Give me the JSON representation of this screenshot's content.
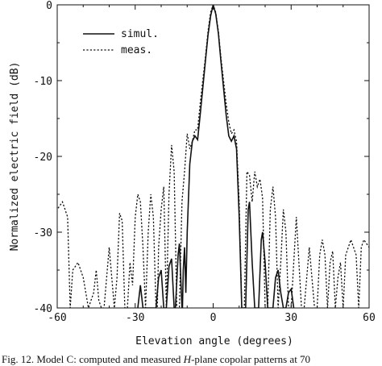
{
  "chart_data": {
    "type": "line",
    "title": "",
    "xlabel": "Elevation angle (degrees)",
    "ylabel": "Normalized electric field (dB)",
    "xlim": [
      -60,
      60
    ],
    "ylim": [
      -40,
      0
    ],
    "xticks": [
      "-60",
      "-30",
      "0",
      "30",
      "60"
    ],
    "yticks": [
      "0",
      "-10",
      "-20",
      "-30",
      "-40"
    ],
    "grid": false,
    "legend_position": "top-left",
    "series": [
      {
        "name": "simul.",
        "style": "solid",
        "points": [
          [
            -29,
            -40
          ],
          [
            -28,
            -37
          ],
          [
            -27,
            -40
          ],
          [
            -22,
            -40
          ],
          [
            -21,
            -36
          ],
          [
            -20,
            -35
          ],
          [
            -19,
            -40
          ],
          [
            -18,
            -40
          ],
          [
            -17,
            -34.5
          ],
          [
            -16,
            -33.5
          ],
          [
            -15,
            -40
          ],
          [
            -14.5,
            -40
          ],
          [
            -13.5,
            -33
          ],
          [
            -13,
            -31.5
          ],
          [
            -12,
            -40
          ],
          [
            -11.8,
            -40
          ],
          [
            -11.5,
            -35
          ],
          [
            -11,
            -32
          ],
          [
            -10.5,
            -38
          ],
          [
            -10,
            -30
          ],
          [
            -9,
            -21
          ],
          [
            -8,
            -18
          ],
          [
            -7,
            -17.3
          ],
          [
            -6,
            -17.8
          ],
          [
            -5,
            -14.5
          ],
          [
            -4,
            -11
          ],
          [
            -3,
            -7.5
          ],
          [
            -2,
            -4
          ],
          [
            -1,
            -1.5
          ],
          [
            0,
            0
          ],
          [
            1,
            -1.2
          ],
          [
            2,
            -3.8
          ],
          [
            3,
            -7.5
          ],
          [
            4,
            -11
          ],
          [
            5,
            -14.5
          ],
          [
            6,
            -17.3
          ],
          [
            7,
            -18
          ],
          [
            8,
            -17.3
          ],
          [
            9,
            -19
          ],
          [
            10,
            -28
          ],
          [
            11,
            -40
          ],
          [
            12.5,
            -40
          ],
          [
            13.5,
            -27
          ],
          [
            14,
            -26
          ],
          [
            15,
            -34
          ],
          [
            16,
            -40
          ],
          [
            17.5,
            -40
          ],
          [
            18.5,
            -31
          ],
          [
            19,
            -30
          ],
          [
            20,
            -34
          ],
          [
            21,
            -40
          ],
          [
            23,
            -40
          ],
          [
            24,
            -36
          ],
          [
            25,
            -35
          ],
          [
            26,
            -38
          ],
          [
            27,
            -40
          ],
          [
            28,
            -40
          ],
          [
            29,
            -38
          ],
          [
            30,
            -37.5
          ],
          [
            31,
            -40
          ]
        ]
      },
      {
        "name": "meas.",
        "style": "dashed",
        "points": [
          [
            -62,
            -30
          ],
          [
            -60,
            -27
          ],
          [
            -58,
            -26
          ],
          [
            -56,
            -28
          ],
          [
            -55,
            -40
          ],
          [
            -54,
            -35
          ],
          [
            -52,
            -34
          ],
          [
            -50,
            -36
          ],
          [
            -48,
            -40
          ],
          [
            -46,
            -38
          ],
          [
            -45,
            -35
          ],
          [
            -44,
            -39
          ],
          [
            -43,
            -40
          ],
          [
            -42,
            -40
          ],
          [
            -40,
            -32
          ],
          [
            -38,
            -40
          ],
          [
            -37,
            -36
          ],
          [
            -36,
            -27.5
          ],
          [
            -35,
            -28.5
          ],
          [
            -34,
            -40
          ],
          [
            -33,
            -40
          ],
          [
            -32,
            -34
          ],
          [
            -31,
            -37
          ],
          [
            -30,
            -28
          ],
          [
            -29,
            -25
          ],
          [
            -28,
            -26
          ],
          [
            -27,
            -32
          ],
          [
            -26,
            -40
          ],
          [
            -25,
            -30
          ],
          [
            -24,
            -25
          ],
          [
            -23,
            -28
          ],
          [
            -22,
            -40
          ],
          [
            -21.5,
            -40
          ],
          [
            -21,
            -32
          ],
          [
            -20,
            -27
          ],
          [
            -19,
            -24
          ],
          [
            -18,
            -40
          ],
          [
            -17,
            -25
          ],
          [
            -16,
            -18.5
          ],
          [
            -15,
            -22
          ],
          [
            -14,
            -40
          ],
          [
            -13,
            -40
          ],
          [
            -12,
            -26
          ],
          [
            -11,
            -22
          ],
          [
            -10,
            -17
          ],
          [
            -9,
            -19
          ],
          [
            -8,
            -18
          ],
          [
            -7,
            -16.5
          ],
          [
            -6,
            -16.5
          ],
          [
            -5,
            -13
          ],
          [
            -4,
            -10
          ],
          [
            -3,
            -7
          ],
          [
            -2,
            -3.5
          ],
          [
            -1,
            -1
          ],
          [
            0,
            0
          ],
          [
            1,
            -1
          ],
          [
            2,
            -3.5
          ],
          [
            3,
            -7
          ],
          [
            4,
            -10
          ],
          [
            5,
            -13
          ],
          [
            6,
            -15.5
          ],
          [
            7,
            -17
          ],
          [
            8,
            -16.5
          ],
          [
            9,
            -18
          ],
          [
            10,
            -26
          ],
          [
            11,
            -40
          ],
          [
            12,
            -40
          ],
          [
            13,
            -22
          ],
          [
            14,
            -22.5
          ],
          [
            15,
            -26
          ],
          [
            16,
            -22
          ],
          [
            17,
            -24
          ],
          [
            18,
            -23
          ],
          [
            19,
            -25.5
          ],
          [
            20,
            -40
          ],
          [
            21,
            -40
          ],
          [
            22,
            -27
          ],
          [
            23,
            -24
          ],
          [
            24,
            -28
          ],
          [
            25,
            -40
          ],
          [
            26,
            -34
          ],
          [
            27,
            -27
          ],
          [
            28,
            -30
          ],
          [
            29,
            -40
          ],
          [
            30,
            -40
          ],
          [
            32,
            -28
          ],
          [
            34,
            -40
          ],
          [
            35,
            -40
          ],
          [
            37,
            -32
          ],
          [
            39,
            -40
          ],
          [
            40,
            -40
          ],
          [
            41,
            -33
          ],
          [
            42,
            -31
          ],
          [
            43,
            -33
          ],
          [
            44,
            -40
          ],
          [
            45,
            -34
          ],
          [
            46,
            -32.5
          ],
          [
            47,
            -40
          ],
          [
            48,
            -36
          ],
          [
            49,
            -34
          ],
          [
            50,
            -40
          ],
          [
            51,
            -33
          ],
          [
            53,
            -31
          ],
          [
            55,
            -33
          ],
          [
            56,
            -40
          ],
          [
            57,
            -32
          ],
          [
            58,
            -31
          ],
          [
            60,
            -32
          ],
          [
            62,
            -31
          ]
        ]
      }
    ]
  },
  "caption": {
    "prefix": "Fig. 12.   Model C: computed and measured ",
    "symbol": "H",
    "suffix": "-plane copolar patterns at 70"
  }
}
